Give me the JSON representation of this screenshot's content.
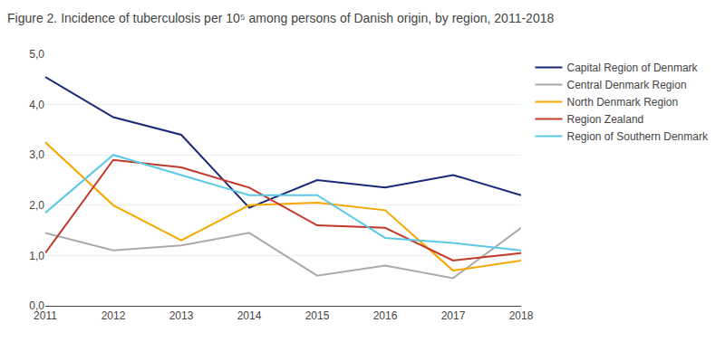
{
  "chart_data": {
    "type": "line",
    "title": "Figure 2. Incidence of tuberculosis per 10⁵ among persons of Danish origin, by region, 2011-2018",
    "x": [
      2011,
      2012,
      2013,
      2014,
      2015,
      2016,
      2017,
      2018
    ],
    "series": [
      {
        "name": "Capital Region of Denmark",
        "color": "#1a2878",
        "values": [
          4.55,
          3.75,
          3.4,
          1.95,
          2.5,
          2.35,
          2.6,
          2.2
        ]
      },
      {
        "name": "Central Denmark Region",
        "color": "#aaaaaa",
        "values": [
          1.45,
          1.1,
          1.2,
          1.45,
          0.6,
          0.8,
          0.55,
          1.55
        ]
      },
      {
        "name": "North Denmark Region",
        "color": "#f5a800",
        "values": [
          3.25,
          2.0,
          1.3,
          2.0,
          2.05,
          1.9,
          0.7,
          0.9
        ]
      },
      {
        "name": "Region Zealand",
        "color": "#c0392b",
        "values": [
          1.05,
          2.9,
          2.75,
          2.35,
          1.6,
          1.55,
          0.9,
          1.05
        ]
      },
      {
        "name": "Region of Southern Denmark",
        "color": "#5bc8e8",
        "values": [
          1.85,
          3.0,
          2.6,
          2.2,
          2.2,
          1.35,
          1.25,
          1.1
        ]
      }
    ],
    "xlim": [
      2011,
      2018
    ],
    "xticks": [
      2011,
      2012,
      2013,
      2014,
      2015,
      2016,
      2017,
      2018
    ],
    "ylim": [
      0,
      5.0
    ],
    "yticks": [
      {
        "value": 0.0,
        "label": "0,0"
      },
      {
        "value": 1.0,
        "label": "1,0"
      },
      {
        "value": 2.0,
        "label": "2,0"
      },
      {
        "value": 3.0,
        "label": "3,0"
      },
      {
        "value": 4.0,
        "label": "4,0"
      },
      {
        "value": 5.0,
        "label": "5,0"
      }
    ],
    "grid": "y",
    "legend": "right"
  }
}
